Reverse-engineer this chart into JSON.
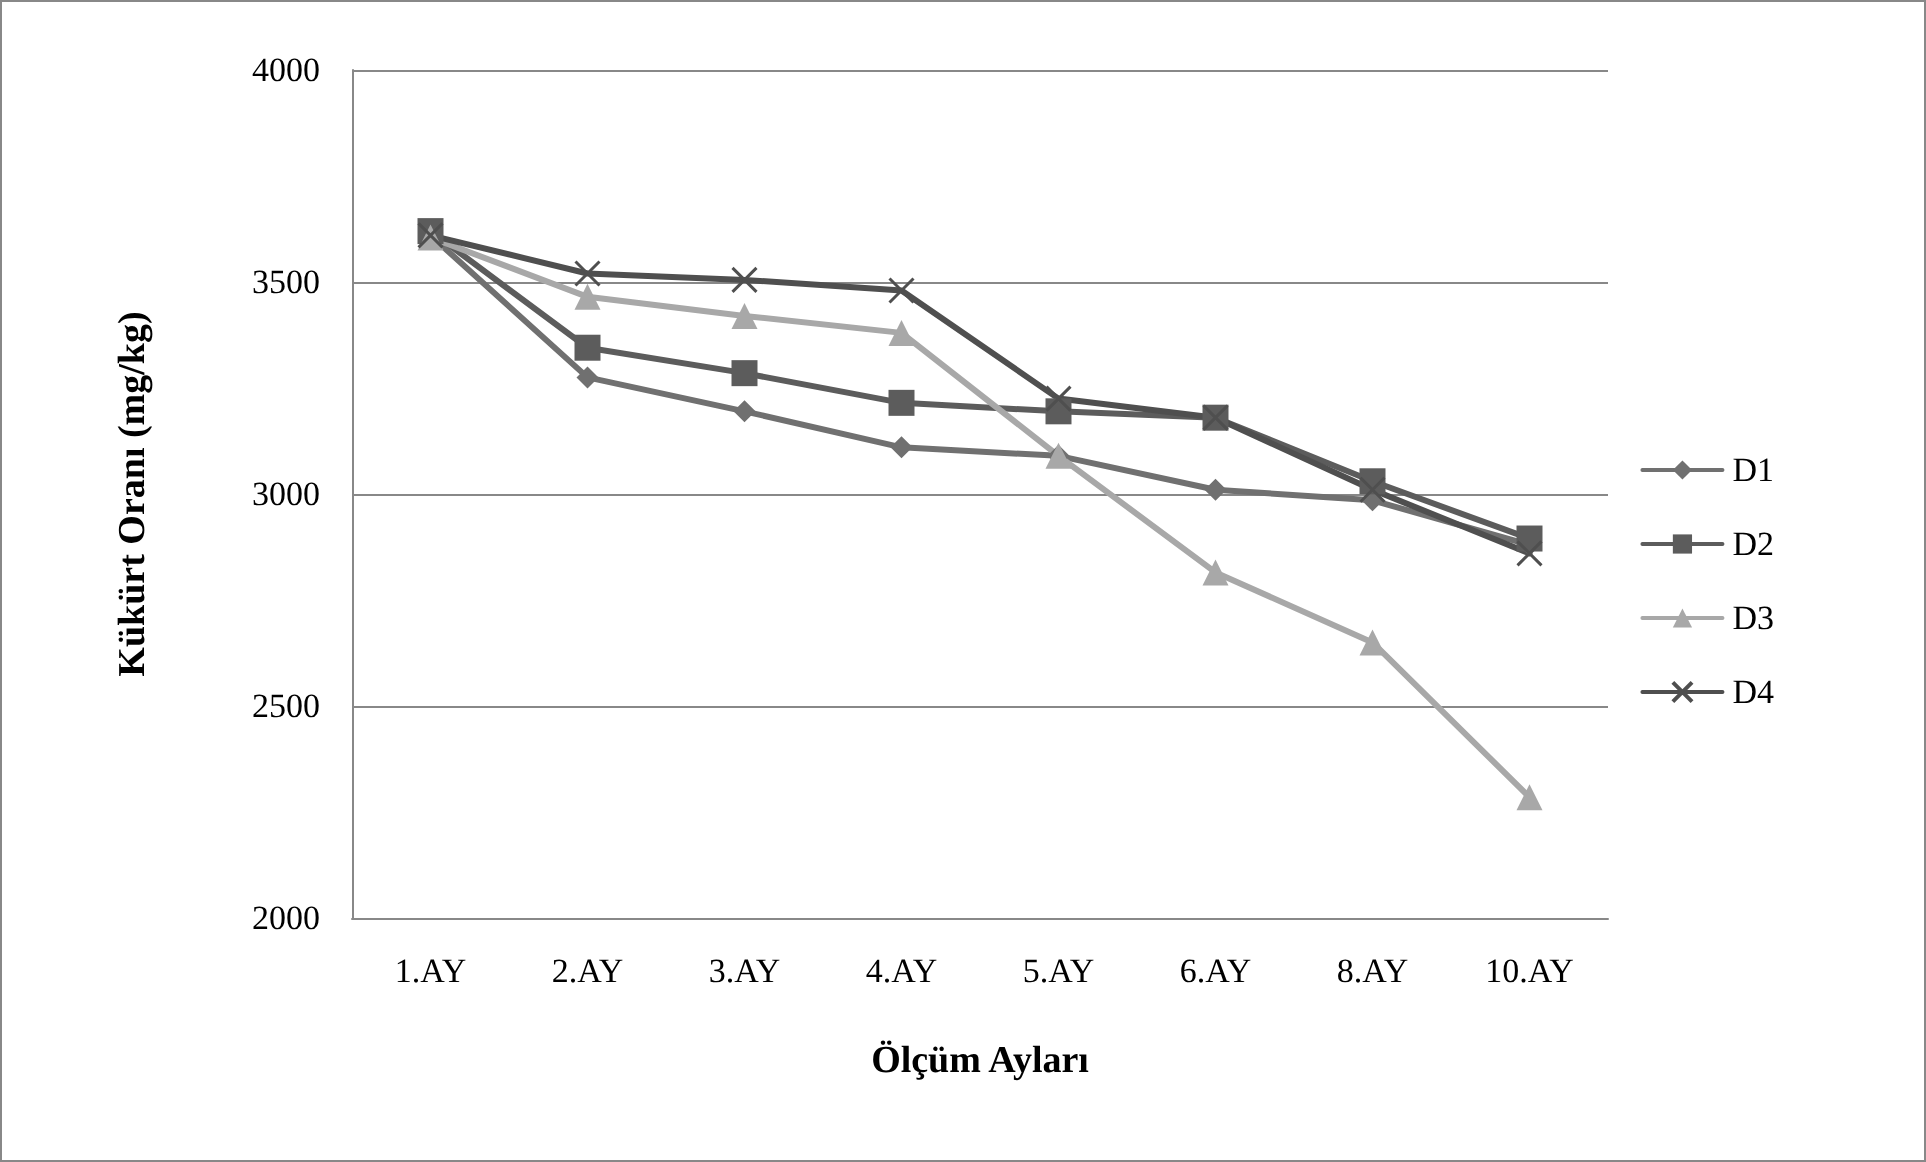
{
  "chart_data": {
    "type": "line",
    "xlabel": "Ölçüm Ayları",
    "ylabel": "Kükürt Oranı (mg/kg)",
    "categories": [
      "1.AY",
      "2.AY",
      "3.AY",
      "4.AY",
      "5.AY",
      "6.AY",
      "8.AY",
      "10.AY"
    ],
    "series": [
      {
        "name": "D1",
        "color": "#707070",
        "marker": "diamond",
        "values": [
          3610,
          3275,
          3195,
          3110,
          3090,
          3010,
          2985,
          2880
        ]
      },
      {
        "name": "D2",
        "color": "#5c5c5c",
        "marker": "square",
        "values": [
          3620,
          3345,
          3285,
          3215,
          3195,
          3180,
          3030,
          2895
        ]
      },
      {
        "name": "D3",
        "color": "#a8a8a8",
        "marker": "triangle",
        "values": [
          3605,
          3465,
          3420,
          3380,
          3090,
          2815,
          2650,
          2285
        ]
      },
      {
        "name": "D4",
        "color": "#4f4f4f",
        "marker": "cross",
        "values": [
          3610,
          3520,
          3505,
          3480,
          3225,
          3180,
          3010,
          2860
        ]
      }
    ],
    "ylim": [
      2000,
      4000
    ],
    "yticks": [
      2000,
      2500,
      3000,
      3500,
      4000
    ],
    "grid": "y",
    "legend": "right",
    "line_style": "solid"
  }
}
